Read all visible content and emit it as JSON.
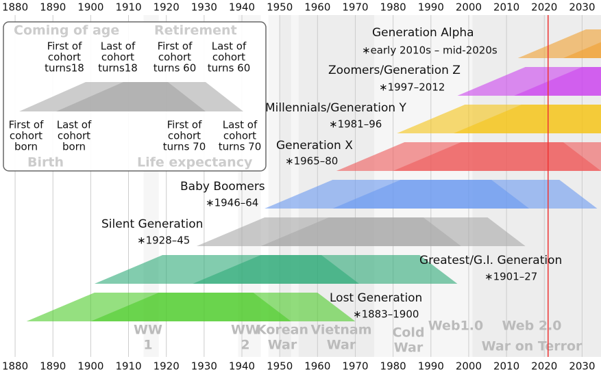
{
  "chart_data": {
    "type": "timeline",
    "xlim": [
      1876,
      2035
    ],
    "xticks": [
      1880,
      1890,
      1900,
      1910,
      1920,
      1930,
      1940,
      1950,
      1960,
      1970,
      1980,
      1990,
      2000,
      2010,
      2020,
      2030
    ],
    "current_year": 2021,
    "generations": [
      {
        "name": "Generation Alpha",
        "label": "∗early 2010s – mid-2020s",
        "start": 2013,
        "end": 2025,
        "color": "#f0a030"
      },
      {
        "name": "Zoomers/Generation Z",
        "label": "∗1997–2012",
        "start": 1997,
        "end": 2012,
        "color": "#cc44ee"
      },
      {
        "name": "Millennials/Generation Y",
        "label": "∗1981–96",
        "start": 1981,
        "end": 1996,
        "color": "#f5c518"
      },
      {
        "name": "Generation X",
        "label": "∗1965–80",
        "start": 1965,
        "end": 1980,
        "color": "#ee5a5a"
      },
      {
        "name": "Baby Boomers",
        "label": "∗1946–64",
        "start": 1946,
        "end": 1964,
        "color": "#6a9af0"
      },
      {
        "name": "Silent Generation",
        "label": "∗1928–45",
        "start": 1928,
        "end": 1945,
        "color": "#a8a8a8"
      },
      {
        "name": "Greatest/G.I. Generation",
        "label": "∗1901–27",
        "start": 1901,
        "end": 1927,
        "color": "#2eaa78"
      },
      {
        "name": "Lost Generation",
        "label": "∗1883–1900",
        "start": 1883,
        "end": 1900,
        "color": "#4fcc2c"
      }
    ],
    "events": [
      {
        "lines": [
          "WW",
          "1"
        ],
        "start": 1914,
        "end": 1918
      },
      {
        "lines": [
          "WW",
          "2"
        ],
        "start": 1939,
        "end": 1945
      },
      {
        "lines": [
          "Korean",
          "War"
        ],
        "start": 1950,
        "end": 1953
      },
      {
        "lines": [
          "Vietnam",
          "War"
        ],
        "start": 1955,
        "end": 1975
      },
      {
        "lines": [
          "Cold",
          "War"
        ],
        "start": 1947,
        "end": 1991
      },
      {
        "lines": [
          "Web1.0"
        ],
        "start": 1991,
        "end": 2004
      },
      {
        "lines": [
          "Web 2.0"
        ],
        "start": 2004,
        "end": 2035
      },
      {
        "lines": [
          "War on Terror"
        ],
        "start": 2001,
        "end": 2035
      }
    ],
    "key": {
      "coming_of_age": "Coming of age",
      "retirement": "Retirement",
      "birth": "Birth",
      "life_expectancy": "Life expectancy",
      "top": [
        [
          "First of",
          "cohort",
          "turns18"
        ],
        [
          "Last of",
          "cohort",
          "turns18"
        ],
        [
          "First of",
          "cohort",
          "turns 60"
        ],
        [
          "Last of",
          "cohort",
          "turns 60"
        ]
      ],
      "bottom": [
        [
          "First of",
          "cohort",
          "born"
        ],
        [
          "Last of",
          "cohort",
          "born"
        ],
        [
          "First of",
          "cohort",
          "turns 70"
        ],
        [
          "Last of",
          "cohort",
          "turns 70"
        ]
      ]
    }
  }
}
